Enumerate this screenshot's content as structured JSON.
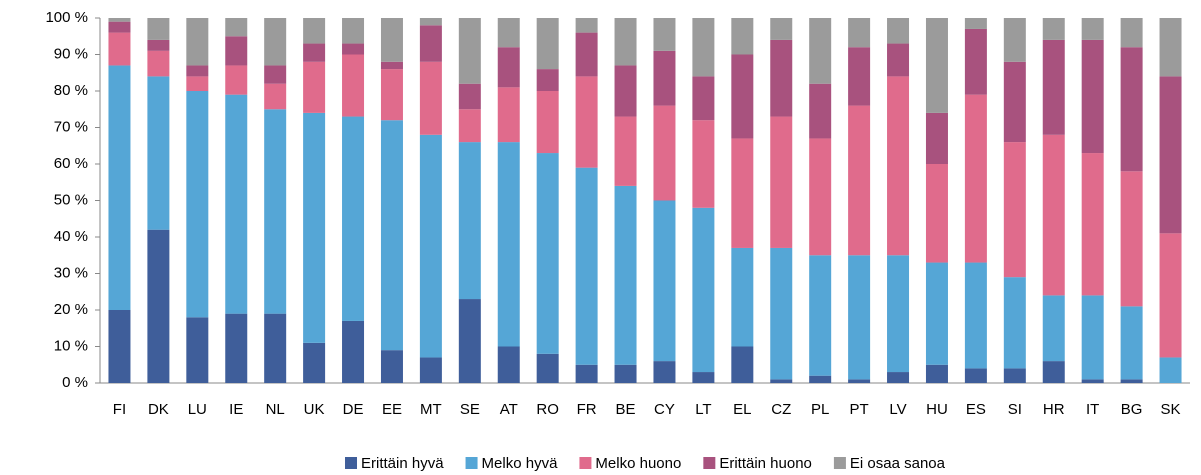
{
  "chart_data": {
    "type": "stacked_bar",
    "categories": [
      "FI",
      "DK",
      "LU",
      "IE",
      "NL",
      "UK",
      "DE",
      "EE",
      "MT",
      "SE",
      "AT",
      "RO",
      "FR",
      "BE",
      "CY",
      "LT",
      "EL",
      "CZ",
      "PL",
      "PT",
      "LV",
      "HU",
      "ES",
      "SI",
      "HR",
      "IT",
      "BG",
      "SK"
    ],
    "series": [
      {
        "name": "Erittäin hyvä",
        "color": "#3f5e9a",
        "values": [
          20,
          42,
          18,
          19,
          19,
          11,
          17,
          9,
          7,
          23,
          10,
          8,
          5,
          5,
          6,
          3,
          10,
          1,
          2,
          1,
          3,
          5,
          4,
          4,
          6,
          1,
          1,
          0
        ]
      },
      {
        "name": "Melko hyvä",
        "color": "#55a6d6",
        "values": [
          67,
          42,
          62,
          60,
          56,
          63,
          56,
          63,
          61,
          43,
          56,
          55,
          54,
          49,
          44,
          45,
          27,
          36,
          33,
          34,
          32,
          28,
          29,
          25,
          18,
          23,
          20,
          7
        ]
      },
      {
        "name": "Melko huono",
        "color": "#e06b8c",
        "values": [
          9,
          7,
          4,
          8,
          7,
          14,
          17,
          14,
          20,
          9,
          15,
          17,
          25,
          19,
          26,
          24,
          30,
          36,
          32,
          41,
          49,
          27,
          46,
          37,
          44,
          39,
          37,
          34
        ]
      },
      {
        "name": "Erittäin huono",
        "color": "#a8527e",
        "values": [
          3,
          3,
          3,
          8,
          5,
          5,
          3,
          2,
          10,
          7,
          11,
          6,
          12,
          14,
          15,
          12,
          23,
          21,
          15,
          16,
          9,
          14,
          18,
          22,
          26,
          31,
          34,
          43
        ]
      },
      {
        "name": "Ei osaa sanoa",
        "color": "#9b9b9b",
        "values": [
          1,
          6,
          13,
          5,
          13,
          7,
          7,
          12,
          2,
          18,
          8,
          14,
          4,
          13,
          9,
          16,
          10,
          6,
          18,
          8,
          7,
          26,
          3,
          12,
          6,
          6,
          8,
          16
        ]
      }
    ],
    "ylim": [
      0,
      100
    ],
    "yticks": [
      {
        "value": 0,
        "label": "0 %"
      },
      {
        "value": 10,
        "label": "10 %"
      },
      {
        "value": 20,
        "label": "20 %"
      },
      {
        "value": 30,
        "label": "30 %"
      },
      {
        "value": 40,
        "label": "40 %"
      },
      {
        "value": 50,
        "label": "50 %"
      },
      {
        "value": 60,
        "label": "60 %"
      },
      {
        "value": 70,
        "label": "70 %"
      },
      {
        "value": 80,
        "label": "80 %"
      },
      {
        "value": 90,
        "label": "90 %"
      },
      {
        "value": 100,
        "label": "100 %"
      }
    ],
    "legend": "bottom"
  }
}
